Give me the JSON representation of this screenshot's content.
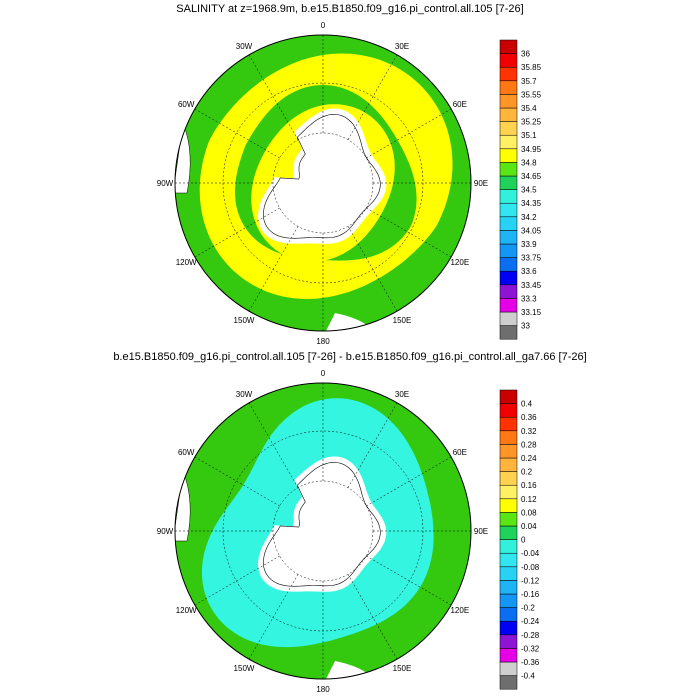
{
  "panels": [
    {
      "title": "SALINITY at z=1968.9m, b.e15.B1850.f09_g16.pi_control.all.105 [7-26]",
      "longitude_labels": [
        "0",
        "30E",
        "60E",
        "90E",
        "120E",
        "150E",
        "180",
        "150W",
        "120W",
        "90W",
        "60W",
        "30W"
      ],
      "colorbar": {
        "colors": [
          "#6e6e6e",
          "#cfcfcf",
          "#e600e6",
          "#8c14d2",
          "#0000f5",
          "#0a6ef0",
          "#1496f5",
          "#1eb4f5",
          "#28d2f5",
          "#32e6f0",
          "#32f0dc",
          "#1ed25a",
          "#5ae614",
          "#ffff00",
          "#fff064",
          "#ffd250",
          "#ffb43c",
          "#ff9628",
          "#ff7814",
          "#ff3200",
          "#f00000",
          "#c80000"
        ],
        "labels": [
          "33",
          "33.15",
          "33.3",
          "33.45",
          "33.6",
          "33.75",
          "33.9",
          "34.05",
          "34.2",
          "34.35",
          "34.5",
          "34.65",
          "34.8",
          "34.95",
          "35.1",
          "35.25",
          "35.4",
          "35.55",
          "35.7",
          "35.85",
          "36"
        ]
      }
    },
    {
      "title": "b.e15.B1850.f09_g16.pi_control.all.105 [7-26] - b.e15.B1850.f09_g16.pi_control.all_ga7.66 [7-26]",
      "longitude_labels": [
        "0",
        "30E",
        "60E",
        "90E",
        "120E",
        "150E",
        "180",
        "150W",
        "120W",
        "90W",
        "60W",
        "30W"
      ],
      "colorbar": {
        "colors": [
          "#6e6e6e",
          "#cfcfcf",
          "#e600e6",
          "#8c14d2",
          "#0000f5",
          "#0a6ef0",
          "#1496f5",
          "#1eb4f5",
          "#28d2f5",
          "#32e6f0",
          "#32f0dc",
          "#1ed25a",
          "#5ae614",
          "#ffff00",
          "#fff064",
          "#ffd250",
          "#ffb43c",
          "#ff9628",
          "#ff7814",
          "#ff3200",
          "#f00000",
          "#c80000"
        ],
        "labels": [
          "-0.4",
          "-0.36",
          "-0.32",
          "-0.28",
          "-0.24",
          "-0.2",
          "-0.16",
          "-0.12",
          "-0.08",
          "-0.04",
          "0",
          "0.04",
          "0.08",
          "0.12",
          "0.16",
          "0.2",
          "0.24",
          "0.28",
          "0.32",
          "0.36",
          "0.4"
        ]
      }
    }
  ],
  "palette": {
    "green": "#34c80f",
    "yellow": "#ffff00",
    "cyan": "#33f5e0",
    "land": "#ffffff"
  }
}
